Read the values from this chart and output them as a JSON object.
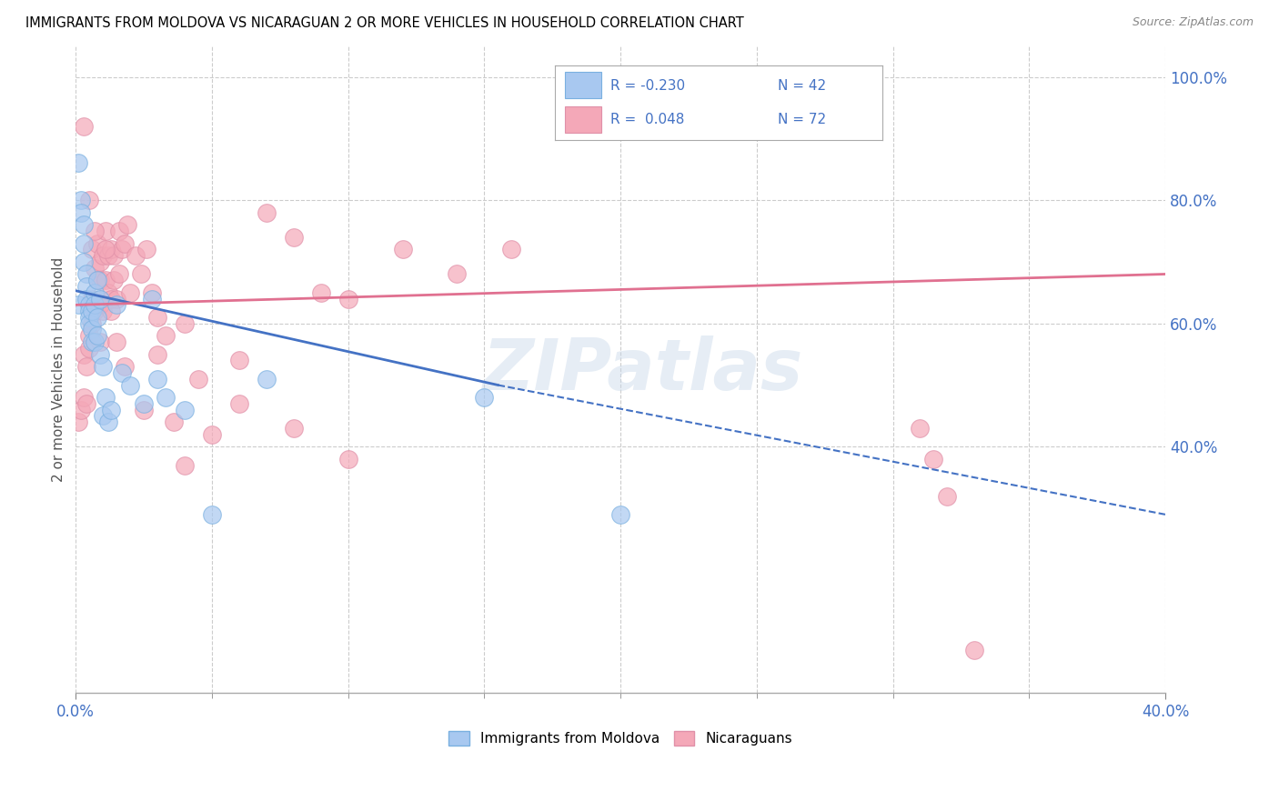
{
  "title": "IMMIGRANTS FROM MOLDOVA VS NICARAGUAN 2 OR MORE VEHICLES IN HOUSEHOLD CORRELATION CHART",
  "source": "Source: ZipAtlas.com",
  "ylabel": "2 or more Vehicles in Household",
  "watermark": "ZIPatlas",
  "legend_r_moldova": "-0.230",
  "legend_n_moldova": "42",
  "legend_r_nicaraguan": "0.048",
  "legend_n_nicaraguan": "72",
  "xmin": 0.0,
  "xmax": 0.4,
  "ymin": 0.0,
  "ymax": 1.05,
  "moldova_color": "#a8c8f0",
  "nicaraguan_color": "#f4a8b8",
  "moldova_line_color": "#4472c4",
  "nicaraguan_line_color": "#e07090",
  "moldova_scatter_x": [
    0.001,
    0.001,
    0.002,
    0.002,
    0.003,
    0.003,
    0.003,
    0.004,
    0.004,
    0.004,
    0.005,
    0.005,
    0.005,
    0.005,
    0.006,
    0.006,
    0.006,
    0.007,
    0.007,
    0.007,
    0.008,
    0.008,
    0.008,
    0.009,
    0.009,
    0.01,
    0.01,
    0.011,
    0.012,
    0.013,
    0.015,
    0.017,
    0.02,
    0.025,
    0.028,
    0.03,
    0.033,
    0.04,
    0.05,
    0.07,
    0.15,
    0.2
  ],
  "moldova_scatter_y": [
    0.86,
    0.63,
    0.8,
    0.78,
    0.76,
    0.73,
    0.7,
    0.68,
    0.66,
    0.64,
    0.63,
    0.62,
    0.61,
    0.6,
    0.62,
    0.59,
    0.57,
    0.57,
    0.65,
    0.63,
    0.58,
    0.67,
    0.61,
    0.55,
    0.64,
    0.53,
    0.45,
    0.48,
    0.44,
    0.46,
    0.63,
    0.52,
    0.5,
    0.47,
    0.64,
    0.51,
    0.48,
    0.46,
    0.29,
    0.51,
    0.48,
    0.29
  ],
  "nicaraguan_scatter_x": [
    0.001,
    0.002,
    0.003,
    0.003,
    0.004,
    0.004,
    0.005,
    0.005,
    0.006,
    0.006,
    0.006,
    0.007,
    0.007,
    0.008,
    0.008,
    0.008,
    0.009,
    0.009,
    0.009,
    0.01,
    0.01,
    0.011,
    0.011,
    0.012,
    0.012,
    0.013,
    0.013,
    0.014,
    0.014,
    0.015,
    0.016,
    0.016,
    0.017,
    0.018,
    0.019,
    0.02,
    0.022,
    0.024,
    0.026,
    0.028,
    0.03,
    0.033,
    0.036,
    0.04,
    0.045,
    0.05,
    0.06,
    0.07,
    0.08,
    0.09,
    0.1,
    0.12,
    0.14,
    0.16,
    0.003,
    0.005,
    0.007,
    0.009,
    0.011,
    0.013,
    0.015,
    0.018,
    0.025,
    0.03,
    0.04,
    0.06,
    0.08,
    0.1,
    0.31,
    0.315,
    0.32,
    0.33
  ],
  "nicaraguan_scatter_y": [
    0.44,
    0.46,
    0.55,
    0.48,
    0.53,
    0.47,
    0.58,
    0.56,
    0.6,
    0.64,
    0.72,
    0.69,
    0.62,
    0.67,
    0.73,
    0.63,
    0.7,
    0.67,
    0.57,
    0.71,
    0.62,
    0.75,
    0.67,
    0.71,
    0.65,
    0.72,
    0.64,
    0.71,
    0.67,
    0.64,
    0.75,
    0.68,
    0.72,
    0.73,
    0.76,
    0.65,
    0.71,
    0.68,
    0.72,
    0.65,
    0.55,
    0.58,
    0.44,
    0.6,
    0.51,
    0.42,
    0.54,
    0.78,
    0.74,
    0.65,
    0.64,
    0.72,
    0.68,
    0.72,
    0.92,
    0.8,
    0.75,
    0.63,
    0.72,
    0.62,
    0.57,
    0.53,
    0.46,
    0.61,
    0.37,
    0.47,
    0.43,
    0.38,
    0.43,
    0.38,
    0.32,
    0.07
  ],
  "moldova_line_x0": 0.0,
  "moldova_line_x1": 0.155,
  "moldova_line_y0": 0.653,
  "moldova_line_y1": 0.5,
  "moldova_line_x2": 0.155,
  "moldova_line_x3": 0.4,
  "moldova_line_y2": 0.5,
  "moldova_line_y3": 0.29,
  "nicaraguan_line_x0": 0.0,
  "nicaraguan_line_x1": 0.4,
  "nicaraguan_line_y0": 0.63,
  "nicaraguan_line_y1": 0.68
}
